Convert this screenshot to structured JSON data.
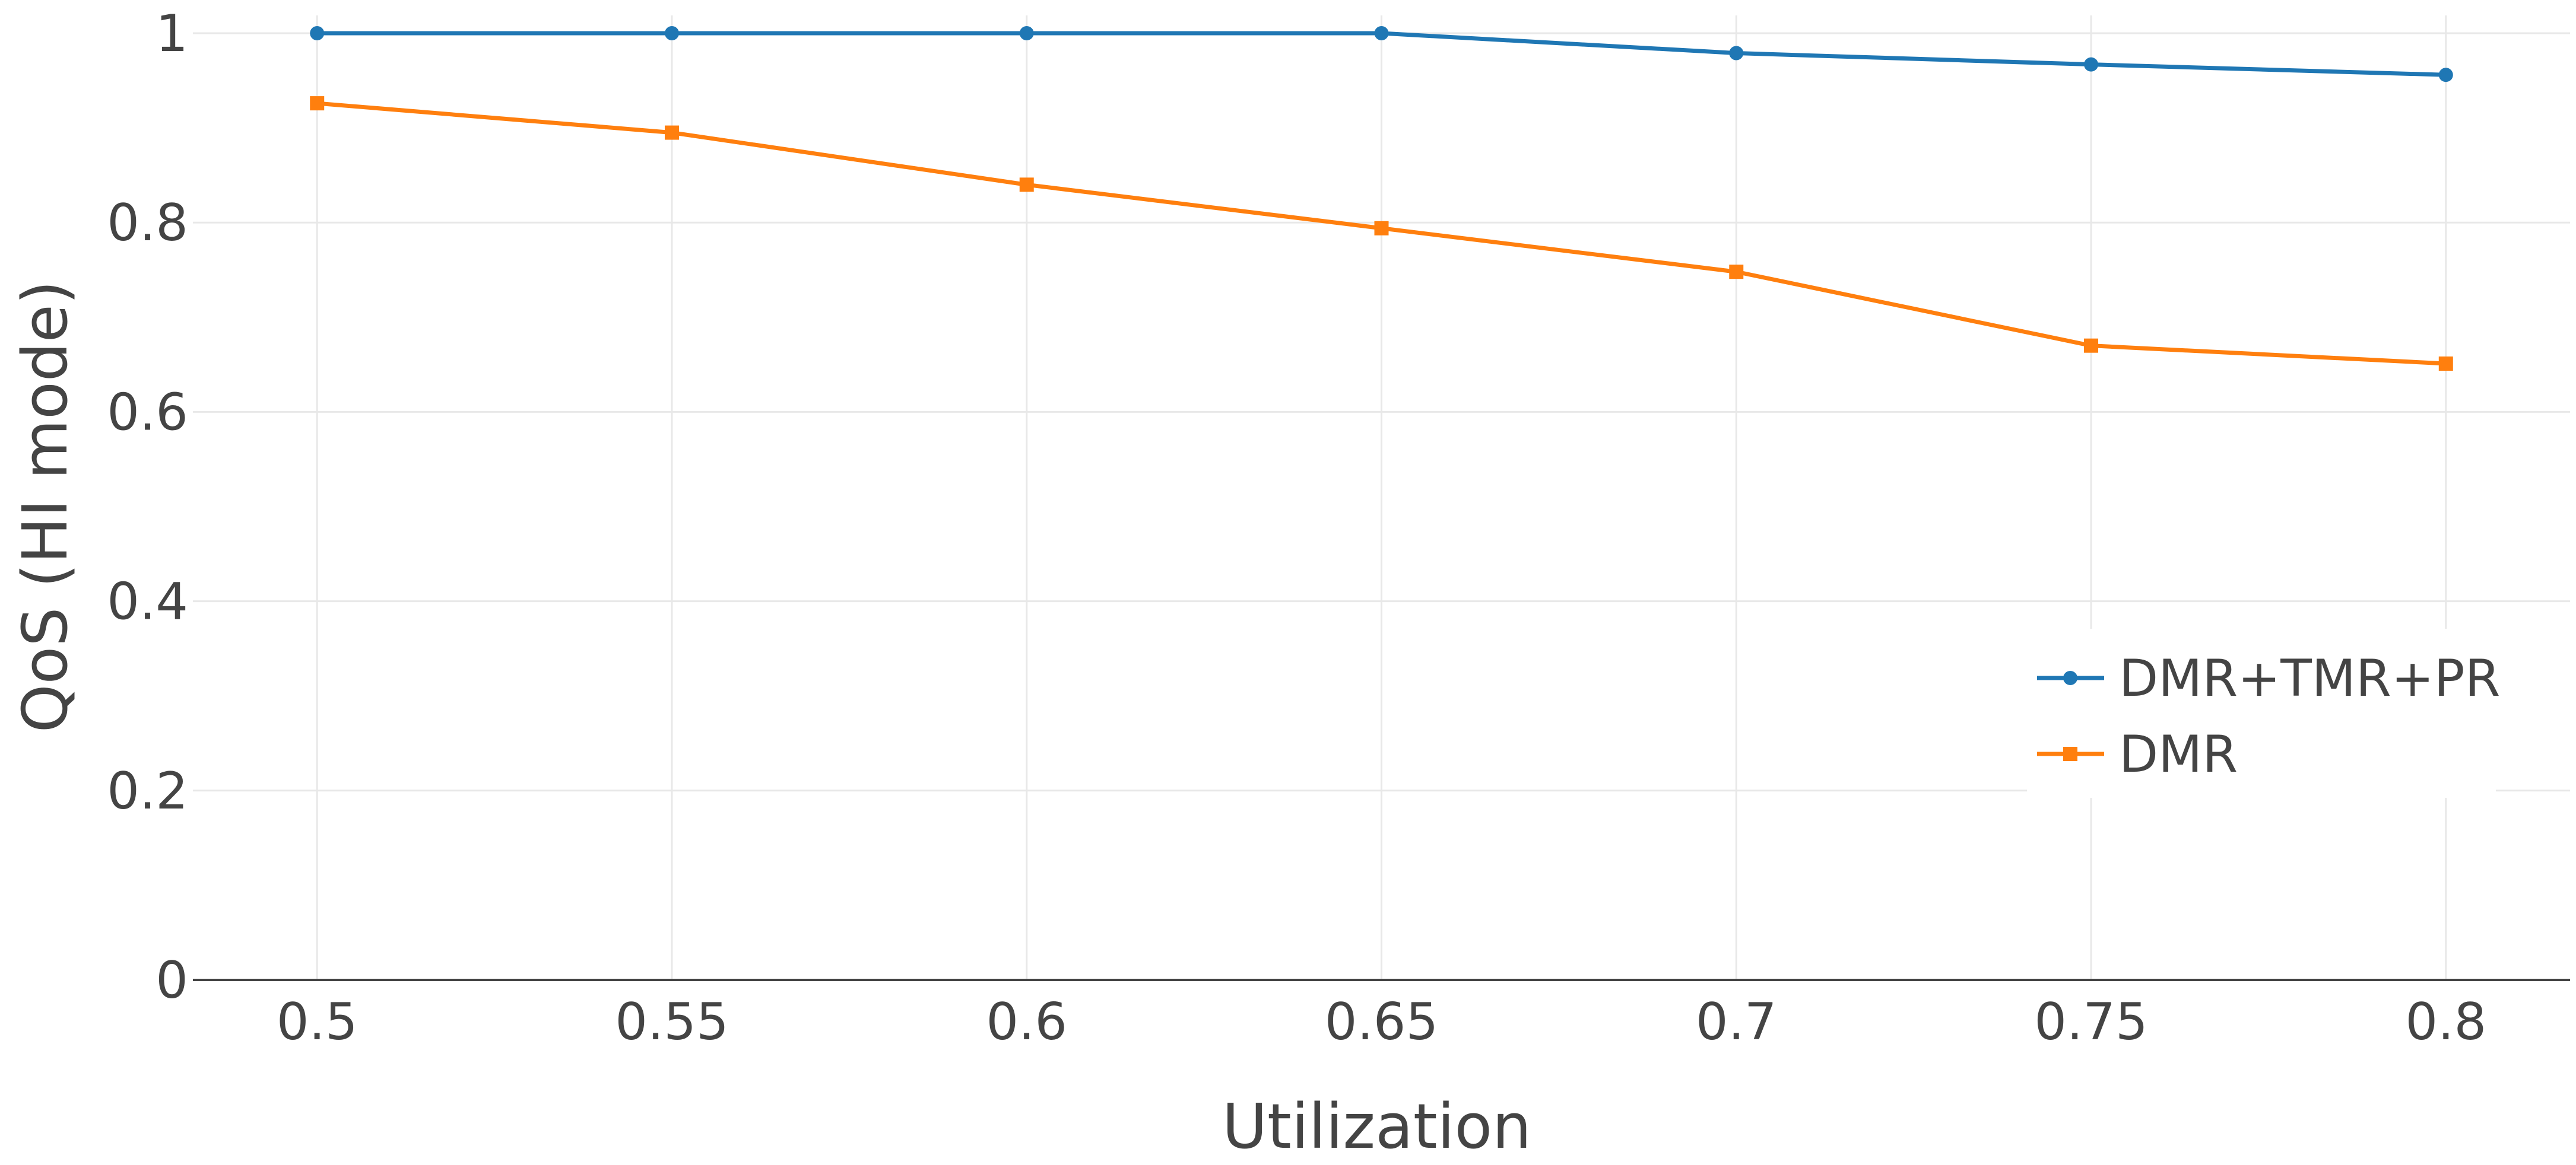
{
  "chart_data": {
    "type": "line",
    "xlabel": "Utilization",
    "ylabel": "QoS (HI mode)",
    "x": [
      0.5,
      0.55,
      0.6,
      0.65,
      0.7,
      0.75,
      0.8
    ],
    "x_tick_labels": [
      "0.5",
      "0.55",
      "0.6",
      "0.65",
      "0.7",
      "0.75",
      "0.8"
    ],
    "y_tick_labels": [
      "0",
      "0.2",
      "0.4",
      "0.6",
      "0.8",
      "1"
    ],
    "y_ticks": [
      0,
      0.2,
      0.4,
      0.6,
      0.8,
      1
    ],
    "xlim": [
      0.4825,
      0.8175
    ],
    "ylim": [
      0,
      1
    ],
    "grid": true,
    "legend_position": "right",
    "series": [
      {
        "name": "DMR+TMR+PR",
        "values": [
          1.0,
          1.0,
          1.0,
          1.0,
          0.979,
          0.967,
          0.956
        ],
        "color": "#1f77b4",
        "marker": "circle"
      },
      {
        "name": "DMR",
        "values": [
          0.926,
          0.895,
          0.84,
          0.794,
          0.748,
          0.67,
          0.651
        ],
        "color": "#ff7f0e",
        "marker": "square"
      }
    ]
  }
}
